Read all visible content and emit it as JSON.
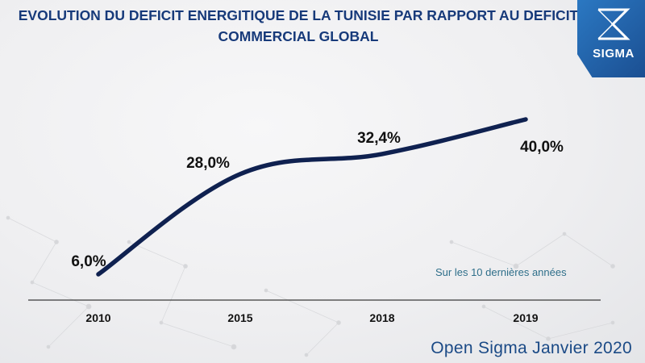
{
  "title_line1": "EVOLUTION DU DEFICIT ENERGITIQUE DE LA TUNISIE PAR RAPPORT AU DEFICIT",
  "title_line2": "COMMERCIAL GLOBAL",
  "logo_text": "SIGMA",
  "note": "Sur les 10 dernières années",
  "footer": "Open Sigma Janvier 2020",
  "colors": {
    "line": "#0f2150",
    "title": "#173a7a",
    "logo": "#1e5aa0"
  },
  "chart_data": {
    "type": "line",
    "title": "EVOLUTION DU DEFICIT ENERGITIQUE DE LA TUNISIE PAR RAPPORT AU DEFICIT COMMERCIAL GLOBAL",
    "categories": [
      "2010",
      "2015",
      "2018",
      "2019"
    ],
    "values": [
      6.0,
      28.0,
      32.4,
      40.0
    ],
    "labels": [
      "6,0%",
      "28,0%",
      "32,4%",
      "40,0%"
    ],
    "unit": "%",
    "xlabel": "",
    "ylabel": "",
    "ylim": [
      0,
      45
    ],
    "grid": false,
    "legend": "none"
  }
}
